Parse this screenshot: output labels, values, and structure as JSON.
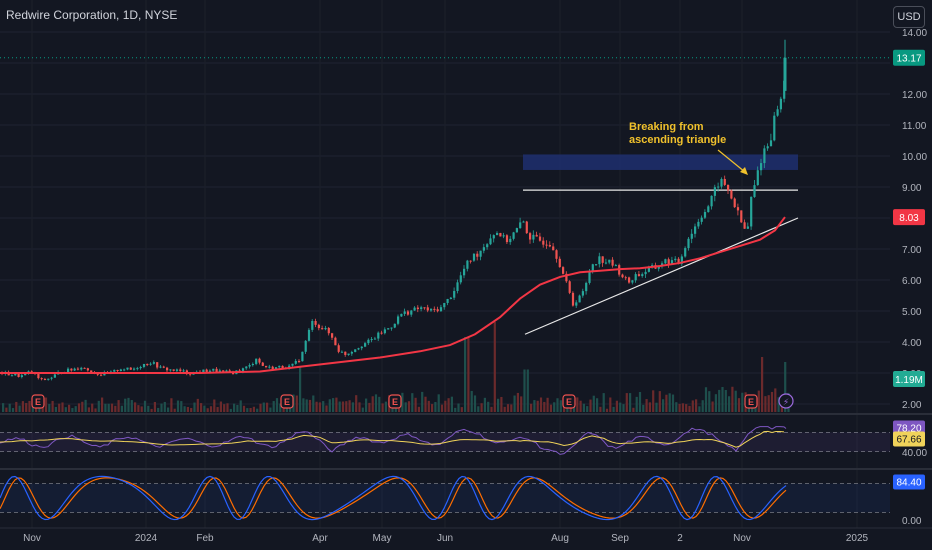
{
  "header": {
    "symbol_title": "Redwire Corporation, 1D, NYSE",
    "currency": "USD"
  },
  "price_axis": {
    "ticks": [
      "14.00",
      "13.00",
      "12.00",
      "11.00",
      "10.00",
      "9.00",
      "8.00",
      "7.00",
      "6.00",
      "5.00",
      "4.00",
      "3.00",
      "2.00"
    ],
    "last_price_label": "13.17",
    "ma_label": "8.03",
    "volume_label": "1.19M"
  },
  "rsi_panel": {
    "tick": "40.00",
    "rsi_value": "78.20",
    "rsi_ma_value": "67.66"
  },
  "stoch_panel": {
    "value": "84.40",
    "tick": "0.00"
  },
  "time_axis": [
    "Nov",
    "2024",
    "Feb",
    "Apr",
    "May",
    "Jun",
    "Aug",
    "Sep",
    "2",
    "Nov",
    "2025"
  ],
  "annotation": {
    "line1": "Breaking from",
    "line2": "ascending triangle"
  },
  "earnings_marker": "E",
  "colors": {
    "up": "#26a69a",
    "down": "#ef5350",
    "ma": "#f23645",
    "rsi": "#7e57c2",
    "rsi_ma": "#f0d35a",
    "stoch_k": "#2962ff",
    "stoch_d": "#ff6d00",
    "zone": "#1e2f6e",
    "annotation": "#f0c12c",
    "price_badge": "#089981"
  },
  "chart_data": {
    "type": "candlestick",
    "title": "Redwire Corporation, 1D, NYSE",
    "ylim": [
      1.6,
      14.5
    ],
    "last_price": 13.17,
    "moving_average_value": 8.03,
    "volume_value": "1.19M",
    "month_labels": [
      "Nov",
      "2024",
      "Feb",
      "Apr",
      "May",
      "Jun",
      "Aug",
      "Sep",
      "2",
      "Nov",
      "2025"
    ],
    "price_path": [
      [
        0,
        3.0
      ],
      [
        10,
        2.95
      ],
      [
        20,
        2.9
      ],
      [
        30,
        3.05
      ],
      [
        40,
        2.75
      ],
      [
        50,
        2.85
      ],
      [
        60,
        3.05
      ],
      [
        70,
        3.1
      ],
      [
        80,
        3.2
      ],
      [
        90,
        3.05
      ],
      [
        100,
        2.95
      ],
      [
        110,
        3.0
      ],
      [
        120,
        3.15
      ],
      [
        130,
        3.1
      ],
      [
        140,
        3.25
      ],
      [
        150,
        3.35
      ],
      [
        160,
        3.15
      ],
      [
        170,
        3.1
      ],
      [
        180,
        3.05
      ],
      [
        190,
        3.0
      ],
      [
        200,
        3.05
      ],
      [
        210,
        3.1
      ],
      [
        220,
        3.05
      ],
      [
        230,
        3.0
      ],
      [
        240,
        3.1
      ],
      [
        250,
        3.25
      ],
      [
        255,
        3.5
      ],
      [
        260,
        3.25
      ],
      [
        270,
        3.15
      ],
      [
        280,
        3.2
      ],
      [
        290,
        3.2
      ],
      [
        300,
        3.5
      ],
      [
        306,
        4.2
      ],
      [
        312,
        4.7
      ],
      [
        318,
        4.5
      ],
      [
        324,
        4.4
      ],
      [
        330,
        4.2
      ],
      [
        338,
        3.7
      ],
      [
        345,
        3.6
      ],
      [
        352,
        3.75
      ],
      [
        360,
        3.9
      ],
      [
        370,
        4.05
      ],
      [
        380,
        4.3
      ],
      [
        390,
        4.5
      ],
      [
        400,
        4.9
      ],
      [
        410,
        5.0
      ],
      [
        420,
        5.1
      ],
      [
        430,
        5.0
      ],
      [
        440,
        5.1
      ],
      [
        448,
        5.4
      ],
      [
        455,
        5.8
      ],
      [
        462,
        6.3
      ],
      [
        470,
        6.7
      ],
      [
        478,
        6.9
      ],
      [
        485,
        7.2
      ],
      [
        492,
        7.5
      ],
      [
        498,
        7.55
      ],
      [
        504,
        7.25
      ],
      [
        510,
        7.4
      ],
      [
        518,
        7.7
      ],
      [
        522,
        7.9
      ],
      [
        528,
        7.4
      ],
      [
        535,
        7.3
      ],
      [
        542,
        7.25
      ],
      [
        550,
        7.2
      ],
      [
        558,
        6.6
      ],
      [
        565,
        5.9
      ],
      [
        572,
        5.2
      ],
      [
        578,
        5.5
      ],
      [
        583,
        5.6
      ],
      [
        590,
        6.5
      ],
      [
        598,
        6.7
      ],
      [
        605,
        6.6
      ],
      [
        612,
        6.5
      ],
      [
        620,
        6.2
      ],
      [
        627,
        5.9
      ],
      [
        634,
        6.15
      ],
      [
        640,
        6.2
      ],
      [
        648,
        6.35
      ],
      [
        655,
        6.4
      ],
      [
        662,
        6.6
      ],
      [
        670,
        6.6
      ],
      [
        678,
        6.55
      ],
      [
        686,
        7.3
      ],
      [
        692,
        7.6
      ],
      [
        700,
        8.1
      ],
      [
        706,
        8.3
      ],
      [
        712,
        8.7
      ],
      [
        718,
        9.2
      ],
      [
        724,
        9.05
      ],
      [
        730,
        8.7
      ],
      [
        736,
        8.2
      ],
      [
        742,
        7.7
      ],
      [
        746,
        7.5
      ],
      [
        750,
        8.6
      ],
      [
        754,
        9.1
      ],
      [
        758,
        9.7
      ],
      [
        763,
        10.2
      ],
      [
        768,
        10.4
      ],
      [
        772,
        11.0
      ],
      [
        776,
        11.6
      ],
      [
        780,
        11.8
      ],
      [
        783,
        12.4
      ],
      [
        786,
        13.2
      ]
    ],
    "ma_path": [
      [
        0,
        3.0
      ],
      [
        100,
        3.0
      ],
      [
        200,
        3.0
      ],
      [
        260,
        3.05
      ],
      [
        300,
        3.2
      ],
      [
        340,
        3.35
      ],
      [
        380,
        3.5
      ],
      [
        420,
        3.7
      ],
      [
        450,
        3.9
      ],
      [
        475,
        4.25
      ],
      [
        500,
        4.8
      ],
      [
        520,
        5.4
      ],
      [
        540,
        5.85
      ],
      [
        560,
        6.1
      ],
      [
        580,
        6.25
      ],
      [
        600,
        6.3
      ],
      [
        620,
        6.35
      ],
      [
        640,
        6.38
      ],
      [
        660,
        6.45
      ],
      [
        680,
        6.55
      ],
      [
        700,
        6.7
      ],
      [
        720,
        6.9
      ],
      [
        740,
        7.1
      ],
      [
        760,
        7.3
      ],
      [
        775,
        7.6
      ],
      [
        785,
        8.03
      ]
    ],
    "annotations": [
      {
        "type": "horizontal_line",
        "price": 8.9,
        "from": "Jun",
        "to": "Nov"
      },
      {
        "type": "trendline",
        "from": [
          525,
          4.25
        ],
        "to": [
          798,
          8.0
        ]
      },
      {
        "type": "zone",
        "low": 9.55,
        "high": 10.05,
        "from": "Jun",
        "to": "Nov"
      },
      {
        "type": "text",
        "text": "Breaking from ascending triangle"
      }
    ],
    "volume_spikes": [
      [
        300,
        0.4
      ],
      [
        466,
        1.0
      ],
      [
        494,
        1.3
      ],
      [
        525,
        0.35
      ],
      [
        760,
        0.6
      ],
      [
        785,
        0.5
      ]
    ],
    "rsi": {
      "value": 78.2,
      "ma": 67.66,
      "upper": 70,
      "lower": 30
    },
    "stochastic": {
      "value": 84.4,
      "upper": 80,
      "lower": 20
    }
  }
}
